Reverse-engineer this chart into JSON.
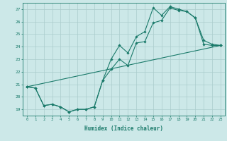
{
  "title": "",
  "xlabel": "Humidex (Indice chaleur)",
  "ylabel": "",
  "xlim": [
    -0.5,
    23.5
  ],
  "ylim": [
    18.5,
    27.5
  ],
  "xticks": [
    0,
    1,
    2,
    3,
    4,
    5,
    6,
    7,
    8,
    9,
    10,
    11,
    12,
    13,
    14,
    15,
    16,
    17,
    18,
    19,
    20,
    21,
    22,
    23
  ],
  "yticks": [
    19,
    20,
    21,
    22,
    23,
    24,
    25,
    26,
    27
  ],
  "bg_color": "#cce8e8",
  "grid_color": "#aacccc",
  "line_color": "#1a7a6a",
  "lines": [
    {
      "x": [
        0,
        1,
        2,
        3,
        4,
        5,
        6,
        7,
        8,
        9,
        10,
        11,
        12,
        13,
        14,
        15,
        16,
        17,
        18,
        19,
        20,
        21,
        22,
        23
      ],
      "y": [
        20.8,
        20.7,
        19.3,
        19.4,
        19.2,
        18.8,
        19.0,
        19.0,
        19.2,
        21.3,
        22.2,
        23.0,
        22.5,
        24.3,
        24.4,
        25.9,
        26.1,
        27.1,
        26.9,
        26.8,
        26.3,
        24.5,
        24.2,
        24.1
      ]
    },
    {
      "x": [
        0,
        1,
        2,
        3,
        4,
        5,
        6,
        7,
        8,
        9,
        10,
        11,
        12,
        13,
        14,
        15,
        16,
        17,
        18,
        19,
        20,
        21,
        22,
        23
      ],
      "y": [
        20.8,
        20.7,
        19.3,
        19.4,
        19.2,
        18.8,
        19.0,
        19.0,
        19.2,
        21.3,
        23.0,
        24.1,
        23.5,
        24.8,
        25.2,
        27.1,
        26.5,
        27.2,
        27.0,
        26.8,
        26.3,
        24.2,
        24.1,
        24.1
      ]
    },
    {
      "x": [
        0,
        23
      ],
      "y": [
        20.8,
        24.1
      ]
    }
  ],
  "figsize": [
    3.2,
    2.0
  ],
  "dpi": 100
}
